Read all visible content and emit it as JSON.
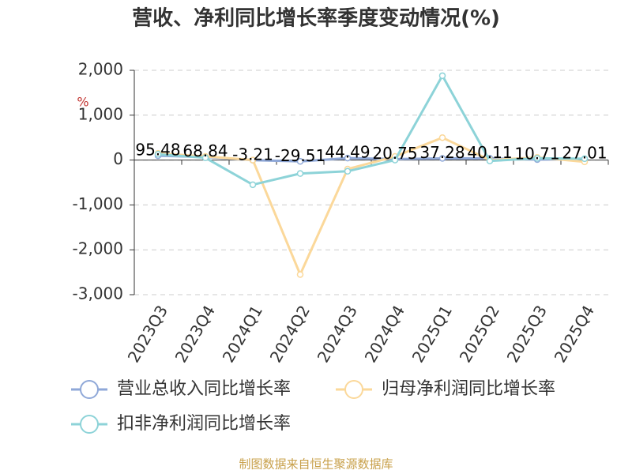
{
  "chart_data": {
    "type": "line",
    "title": "营收、净利同比增长率季度变动情况(%)",
    "y_label": "%",
    "source": "制图数据来自恒生聚源数据库",
    "categories": [
      "2023Q3",
      "2023Q4",
      "2024Q1",
      "2024Q2",
      "2024Q3",
      "2024Q4",
      "2025Q1",
      "2025Q2",
      "2025Q3",
      "2025Q4"
    ],
    "series": [
      {
        "name": "营业总收入同比增长率",
        "color": "#8fa8d8",
        "values": [
          95.48,
          68.84,
          -3.21,
          -29.51,
          44.49,
          20.75,
          37.28,
          40.11,
          10.71,
          27.01
        ],
        "show_labels": true
      },
      {
        "name": "归母净利润同比增长率",
        "color": "#fbd89a",
        "values": [
          150,
          80,
          0,
          -2550,
          -200,
          80,
          500,
          0,
          60,
          -40
        ]
      },
      {
        "name": "扣非净利润同比增长率",
        "color": "#8dd3d8",
        "values": [
          130,
          50,
          -550,
          -300,
          -250,
          0,
          1880,
          -20,
          40,
          30
        ]
      }
    ],
    "ylim": [
      -3000,
      2000
    ],
    "yticks": [
      {
        "value": -3000,
        "label": "-3,000"
      },
      {
        "value": -2000,
        "label": "-2,000"
      },
      {
        "value": -1000,
        "label": "-1,000"
      },
      0,
      {
        "value": 1000,
        "label": "1,000"
      },
      {
        "value": 2000,
        "label": "2,000"
      }
    ],
    "grid": true
  }
}
